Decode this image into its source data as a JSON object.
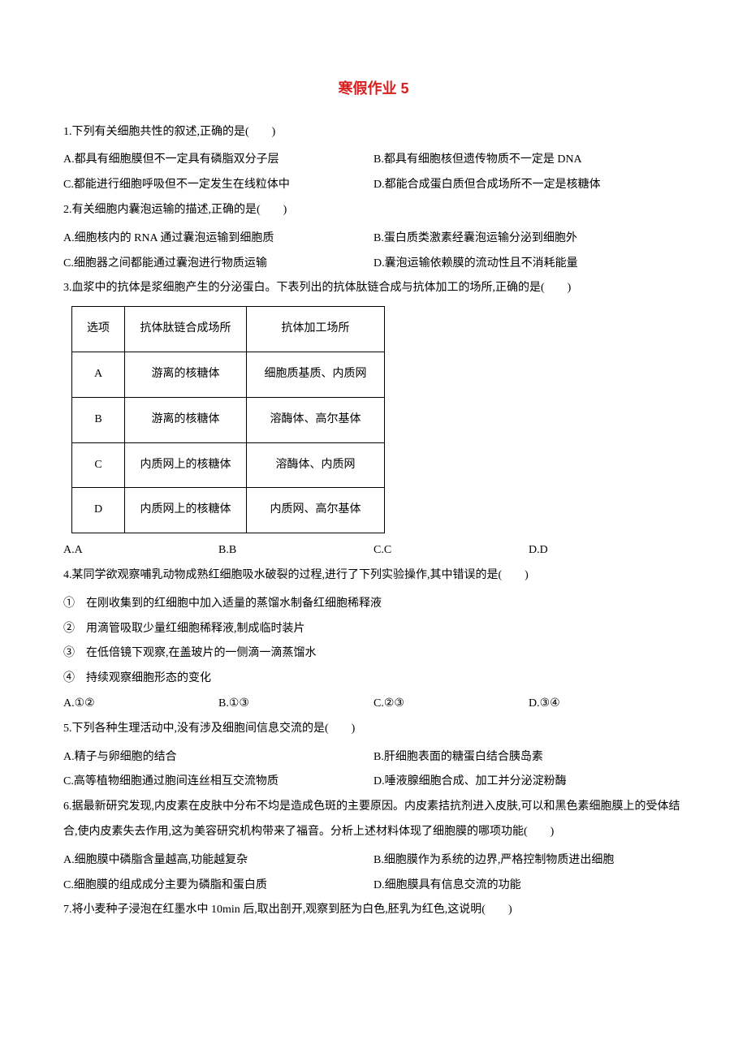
{
  "title": "寒假作业 5",
  "q1": {
    "stem": "1.下列有关细胞共性的叙述,正确的是(　　)",
    "A": "A.都具有细胞膜但不一定具有磷脂双分子层",
    "B": "B.都具有细胞核但遗传物质不一定是 DNA",
    "C": "C.都能进行细胞呼吸但不一定发生在线粒体中",
    "D": "D.都能合成蛋白质但合成场所不一定是核糖体"
  },
  "q2": {
    "stem": "2.有关细胞内囊泡运输的描述,正确的是(　　)",
    "A": "A.细胞核内的 RNA 通过囊泡运输到细胞质",
    "B": "B.蛋白质类激素经囊泡运输分泌到细胞外",
    "C": "C.细胞器之间都能通过囊泡进行物质运输",
    "D": "D.囊泡运输依赖膜的流动性且不消耗能量"
  },
  "q3": {
    "stem": "3.血浆中的抗体是浆细胞产生的分泌蛋白。下表列出的抗体肽链合成与抗体加工的场所,正确的是(　　)",
    "table": {
      "header": [
        "选项",
        "抗体肽链合成场所",
        "抗体加工场所"
      ],
      "rows": [
        [
          "A",
          "游离的核糖体",
          "细胞质基质、内质网"
        ],
        [
          "B",
          "游离的核糖体",
          "溶酶体、高尔基体"
        ],
        [
          "C",
          "内质网上的核糖体",
          "溶酶体、内质网"
        ],
        [
          "D",
          "内质网上的核糖体",
          "内质网、高尔基体"
        ]
      ]
    },
    "A": "A.A",
    "B": "B.B",
    "C": "C.C",
    "D": "D.D"
  },
  "q4": {
    "stem": "4.某同学欲观察哺乳动物成熟红细胞吸水破裂的过程,进行了下列实验操作,其中错误的是(　　)",
    "step1": "①　在刚收集到的红细胞中加入适量的蒸馏水制备红细胞稀释液",
    "step2": "②　用滴管吸取少量红细胞稀释液,制成临时装片",
    "step3": "③　在低倍镜下观察,在盖玻片的一侧滴一滴蒸馏水",
    "step4": "④　持续观察细胞形态的变化",
    "A": "A.①②",
    "B": "B.①③",
    "C": "C.②③",
    "D": "D.③④"
  },
  "q5": {
    "stem": "5.下列各种生理活动中,没有涉及细胞间信息交流的是(　　)",
    "A": "A.精子与卵细胞的结合",
    "B": "B.肝细胞表面的糖蛋白结合胰岛素",
    "C": "C.高等植物细胞通过胞间连丝相互交流物质",
    "D": "D.唾液腺细胞合成、加工并分泌淀粉酶"
  },
  "q6": {
    "stem": "6.据最新研究发现,内皮素在皮肤中分布不均是造成色斑的主要原因。内皮素拮抗剂进入皮肤,可以和黑色素细胞膜上的受体结合,使内皮素失去作用,这为美容研究机构带来了福音。分析上述材料体现了细胞膜的哪项功能(　　)",
    "A": "A.细胞膜中磷脂含量越高,功能越复杂",
    "B": "B.细胞膜作为系统的边界,严格控制物质进出细胞",
    "C": "C.细胞膜的组成成分主要为磷脂和蛋白质",
    "D": "D.细胞膜具有信息交流的功能"
  },
  "q7": {
    "stem": "7.将小麦种子浸泡在红墨水中 10min 后,取出剖开,观察到胚为白色,胚乳为红色,这说明(　　)"
  }
}
